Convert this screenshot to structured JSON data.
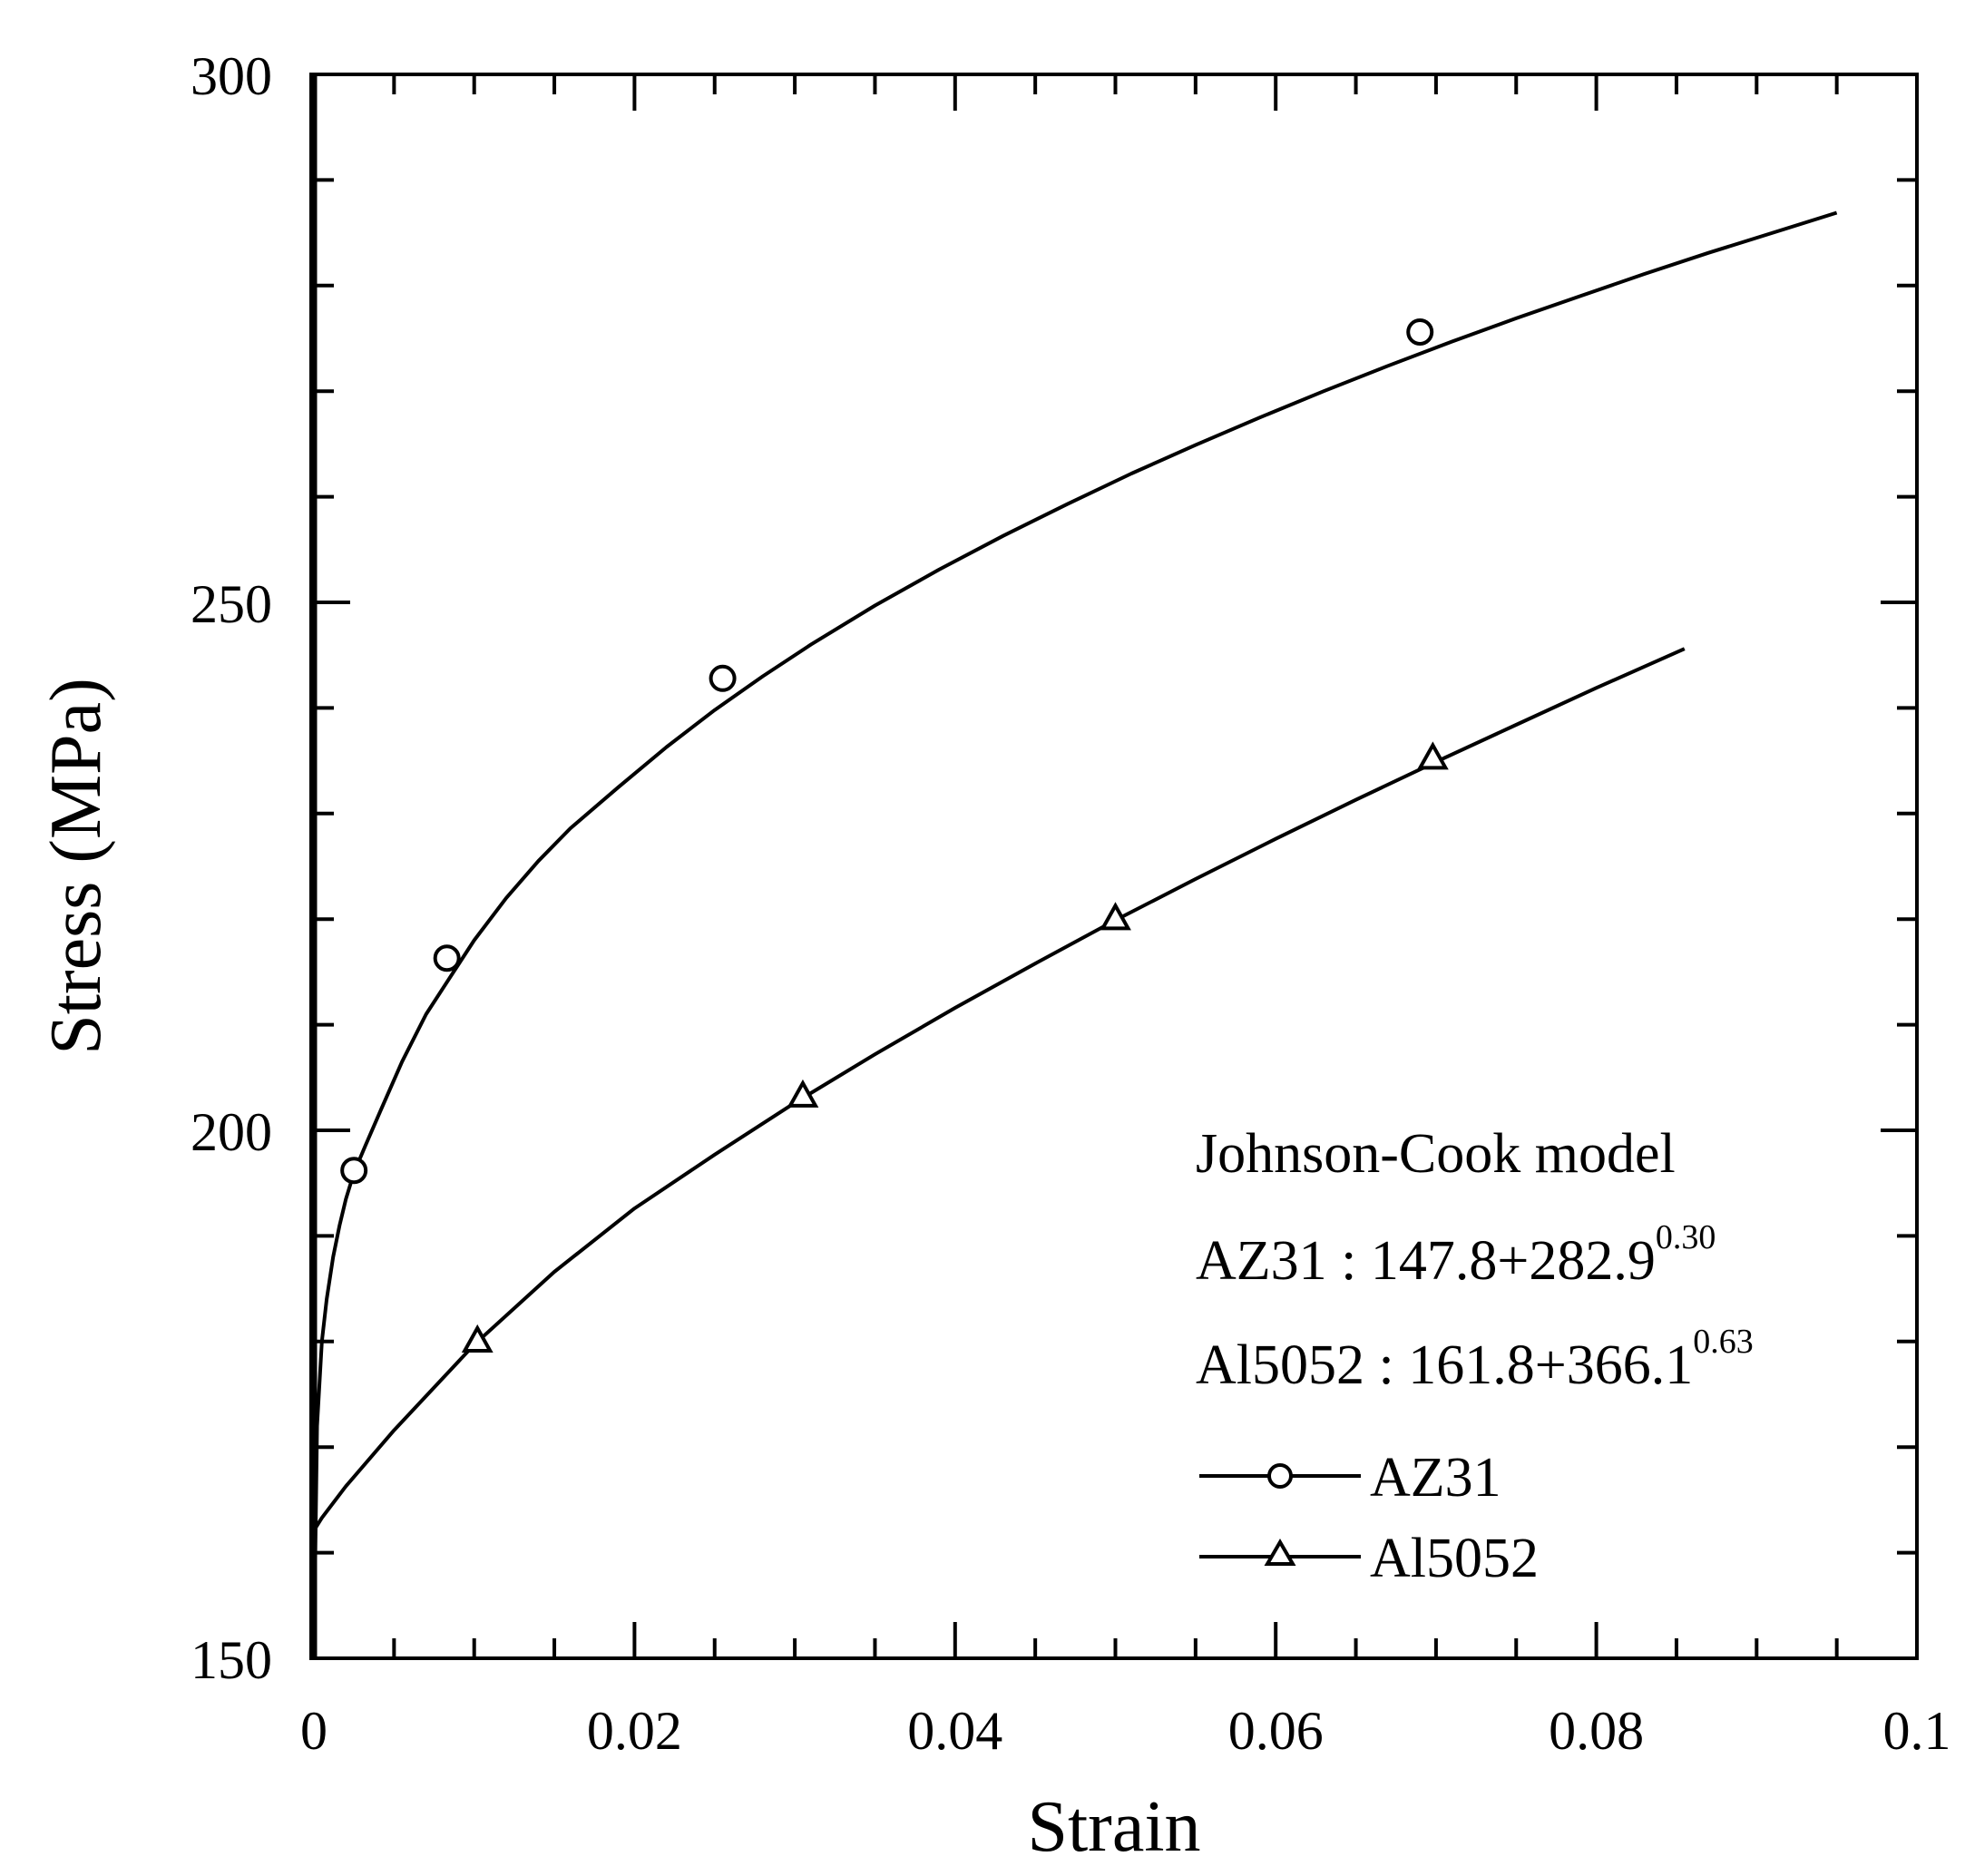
{
  "chart_data": {
    "type": "line",
    "xlabel": "Strain",
    "ylabel": "Stress (MPa)",
    "xlim": [
      0,
      0.1
    ],
    "ylim": [
      150,
      300
    ],
    "x_ticks": [
      0,
      0.02,
      0.04,
      0.06,
      0.08,
      0.1
    ],
    "x_tick_labels": [
      "0",
      "0.02",
      "0.04",
      "0.06",
      "0.08",
      "0.1"
    ],
    "y_ticks": [
      150,
      200,
      250,
      300
    ],
    "y_tick_labels": [
      "150",
      "200",
      "250",
      "300"
    ],
    "x_minor_step": 0.005,
    "y_minor_step": 10,
    "grid": false,
    "legend_position": "bottom-right",
    "annotations": {
      "title": "Johnson-Cook model",
      "eq1_base": "AZ31 : 147.8+282.9",
      "eq1_exp": "0.30",
      "eq2_base": "Al5052 : 161.8+366.1",
      "eq2_exp": "0.63"
    },
    "series": [
      {
        "name": "AZ31",
        "marker": "circle",
        "color": "#000000",
        "x": [
          0.0,
          0.0002,
          0.0005,
          0.0008,
          0.0012,
          0.0016,
          0.002,
          0.0025,
          0.0032,
          0.0042,
          0.0055,
          0.007,
          0.0085,
          0.01,
          0.012,
          0.014,
          0.016,
          0.019,
          0.022,
          0.025,
          0.028,
          0.031,
          0.035,
          0.039,
          0.043,
          0.047,
          0.051,
          0.055,
          0.059,
          0.063,
          0.067,
          0.071,
          0.075,
          0.079,
          0.083,
          0.087,
          0.091,
          0.095
        ],
        "y": [
          150,
          172,
          180,
          184,
          188,
          191,
          193.5,
          196,
          198.5,
          202,
          206.5,
          211,
          214.5,
          218,
          222,
          225.5,
          228.6,
          232.5,
          236.3,
          239.8,
          243,
          246,
          249.7,
          253.1,
          256.3,
          259.3,
          262.2,
          264.9,
          267.5,
          270,
          272.4,
          274.7,
          276.9,
          279,
          281.1,
          283.1,
          285,
          286.9
        ],
        "marker_x": [
          0.0025,
          0.0083,
          0.0255,
          0.069
        ],
        "marker_y": [
          196.2,
          216.3,
          242.8,
          275.6
        ]
      },
      {
        "name": "Al5052",
        "marker": "triangle",
        "color": "#000000",
        "x": [
          0.0,
          0.0005,
          0.002,
          0.005,
          0.01,
          0.015,
          0.02,
          0.025,
          0.03,
          0.035,
          0.04,
          0.045,
          0.05,
          0.055,
          0.06,
          0.065,
          0.07,
          0.075,
          0.08,
          0.0855
        ],
        "y": [
          162.1,
          163.3,
          166.3,
          171.6,
          179.7,
          186.6,
          192.6,
          197.7,
          202.6,
          207.2,
          211.6,
          215.8,
          219.9,
          223.8,
          227.6,
          231.3,
          234.9,
          238.4,
          241.9,
          245.6
        ],
        "marker_x": [
          0.0102,
          0.0305,
          0.05,
          0.0698
        ],
        "marker_y": [
          179.9,
          203.1,
          219.9,
          235.1
        ]
      }
    ]
  }
}
